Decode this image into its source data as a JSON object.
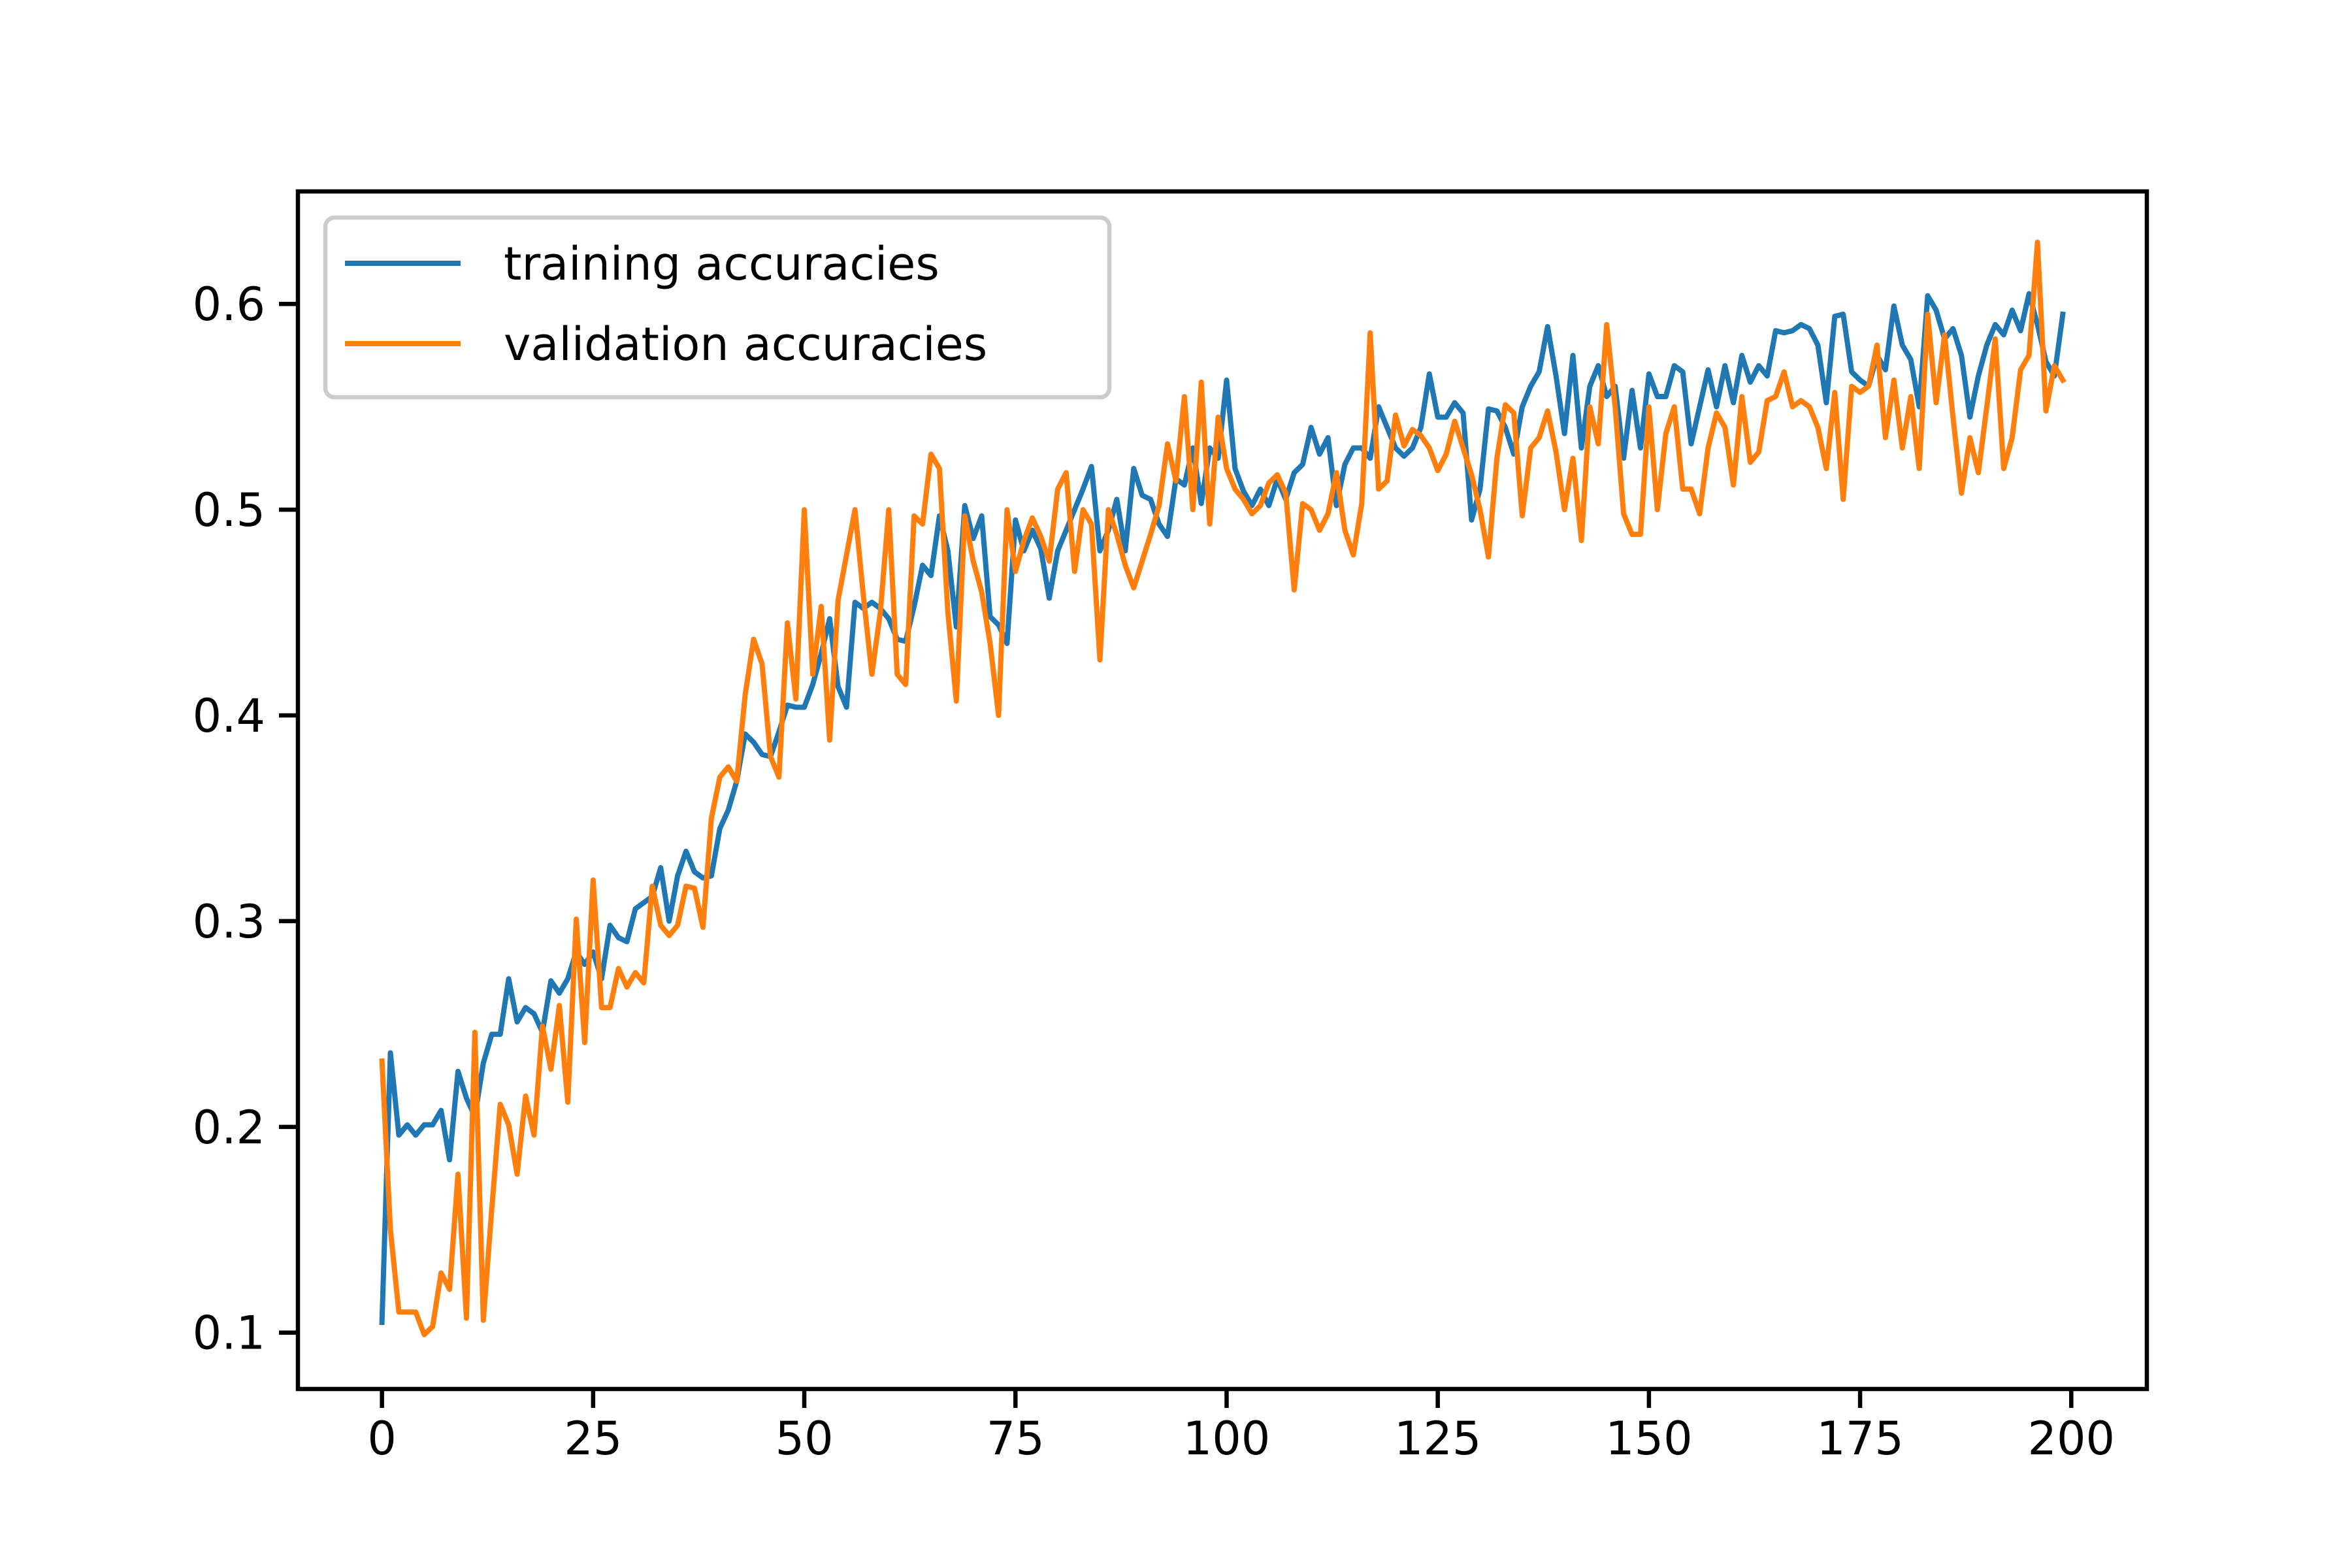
{
  "chart_data": {
    "type": "line",
    "x": [
      0,
      1,
      2,
      3,
      4,
      5,
      6,
      7,
      8,
      9,
      10,
      11,
      12,
      13,
      14,
      15,
      16,
      17,
      18,
      19,
      20,
      21,
      22,
      23,
      24,
      25,
      26,
      27,
      28,
      29,
      30,
      31,
      32,
      33,
      34,
      35,
      36,
      37,
      38,
      39,
      40,
      41,
      42,
      43,
      44,
      45,
      46,
      47,
      48,
      49,
      50,
      51,
      52,
      53,
      54,
      55,
      56,
      57,
      58,
      59,
      60,
      61,
      62,
      63,
      64,
      65,
      66,
      67,
      68,
      69,
      70,
      71,
      72,
      73,
      74,
      75,
      76,
      77,
      78,
      79,
      80,
      81,
      82,
      83,
      84,
      85,
      86,
      87,
      88,
      89,
      90,
      91,
      92,
      93,
      94,
      95,
      96,
      97,
      98,
      99,
      100,
      101,
      102,
      103,
      104,
      105,
      106,
      107,
      108,
      109,
      110,
      111,
      112,
      113,
      114,
      115,
      116,
      117,
      118,
      119,
      120,
      121,
      122,
      123,
      124,
      125,
      126,
      127,
      128,
      129,
      130,
      131,
      132,
      133,
      134,
      135,
      136,
      137,
      138,
      139,
      140,
      141,
      142,
      143,
      144,
      145,
      146,
      147,
      148,
      149,
      150,
      151,
      152,
      153,
      154,
      155,
      156,
      157,
      158,
      159,
      160,
      161,
      162,
      163,
      164,
      165,
      166,
      167,
      168,
      169,
      170,
      171,
      172,
      173,
      174,
      175,
      176,
      177,
      178,
      179,
      180,
      181,
      182,
      183,
      184,
      185,
      186,
      187,
      188,
      189,
      190,
      191,
      192,
      193,
      194,
      195,
      196,
      197,
      198,
      199
    ],
    "series": [
      {
        "name": "training accuracies",
        "color": "#1f77b4",
        "values": [
          0.105,
          0.236,
          0.196,
          0.201,
          0.196,
          0.201,
          0.201,
          0.208,
          0.184,
          0.227,
          0.214,
          0.205,
          0.231,
          0.245,
          0.245,
          0.272,
          0.251,
          0.258,
          0.255,
          0.246,
          0.271,
          0.265,
          0.272,
          0.285,
          0.279,
          0.285,
          0.272,
          0.298,
          0.292,
          0.29,
          0.306,
          0.309,
          0.312,
          0.326,
          0.3,
          0.322,
          0.334,
          0.324,
          0.321,
          0.322,
          0.345,
          0.354,
          0.368,
          0.391,
          0.387,
          0.381,
          0.38,
          0.392,
          0.405,
          0.404,
          0.404,
          0.415,
          0.43,
          0.447,
          0.414,
          0.404,
          0.455,
          0.452,
          0.455,
          0.452,
          0.447,
          0.437,
          0.436,
          0.453,
          0.473,
          0.468,
          0.497,
          0.48,
          0.443,
          0.502,
          0.486,
          0.497,
          0.448,
          0.444,
          0.435,
          0.495,
          0.48,
          0.49,
          0.481,
          0.457,
          0.48,
          0.49,
          0.5,
          0.51,
          0.521,
          0.48,
          0.49,
          0.505,
          0.48,
          0.52,
          0.507,
          0.505,
          0.493,
          0.487,
          0.515,
          0.512,
          0.53,
          0.503,
          0.53,
          0.525,
          0.563,
          0.52,
          0.509,
          0.502,
          0.51,
          0.502,
          0.515,
          0.505,
          0.518,
          0.522,
          0.54,
          0.527,
          0.535,
          0.502,
          0.522,
          0.53,
          0.53,
          0.525,
          0.55,
          0.54,
          0.53,
          0.526,
          0.53,
          0.54,
          0.566,
          0.545,
          0.545,
          0.552,
          0.547,
          0.495,
          0.51,
          0.549,
          0.548,
          0.54,
          0.527,
          0.55,
          0.56,
          0.567,
          0.589,
          0.565,
          0.537,
          0.575,
          0.53,
          0.56,
          0.57,
          0.555,
          0.56,
          0.525,
          0.558,
          0.53,
          0.566,
          0.555,
          0.555,
          0.57,
          0.567,
          0.532,
          0.55,
          0.568,
          0.55,
          0.57,
          0.552,
          0.575,
          0.562,
          0.57,
          0.565,
          0.587,
          0.586,
          0.587,
          0.59,
          0.588,
          0.58,
          0.552,
          0.594,
          0.595,
          0.567,
          0.563,
          0.56,
          0.575,
          0.568,
          0.599,
          0.58,
          0.573,
          0.55,
          0.604,
          0.597,
          0.583,
          0.588,
          0.575,
          0.545,
          0.565,
          0.58,
          0.59,
          0.585,
          0.597,
          0.587,
          0.605,
          0.59,
          0.572,
          0.565,
          0.595
        ]
      },
      {
        "name": "validation accuracies",
        "color": "#ff7f0e",
        "values": [
          0.232,
          0.15,
          0.11,
          0.11,
          0.11,
          0.099,
          0.103,
          0.129,
          0.121,
          0.177,
          0.107,
          0.246,
          0.106,
          0.16,
          0.211,
          0.201,
          0.177,
          0.215,
          0.196,
          0.249,
          0.228,
          0.259,
          0.212,
          0.301,
          0.241,
          0.32,
          0.258,
          0.258,
          0.277,
          0.268,
          0.275,
          0.27,
          0.317,
          0.298,
          0.293,
          0.298,
          0.317,
          0.316,
          0.297,
          0.35,
          0.37,
          0.375,
          0.368,
          0.41,
          0.437,
          0.425,
          0.38,
          0.37,
          0.445,
          0.408,
          0.5,
          0.42,
          0.453,
          0.388,
          0.456,
          0.478,
          0.5,
          0.458,
          0.42,
          0.45,
          0.5,
          0.42,
          0.415,
          0.497,
          0.493,
          0.527,
          0.52,
          0.45,
          0.407,
          0.497,
          0.475,
          0.46,
          0.435,
          0.4,
          0.5,
          0.47,
          0.485,
          0.496,
          0.487,
          0.475,
          0.51,
          0.518,
          0.47,
          0.5,
          0.493,
          0.427,
          0.5,
          0.488,
          0.473,
          0.462,
          0.475,
          0.488,
          0.502,
          0.532,
          0.514,
          0.555,
          0.5,
          0.562,
          0.493,
          0.545,
          0.52,
          0.51,
          0.505,
          0.498,
          0.502,
          0.513,
          0.517,
          0.508,
          0.461,
          0.503,
          0.5,
          0.49,
          0.498,
          0.518,
          0.49,
          0.478,
          0.503,
          0.586,
          0.51,
          0.514,
          0.546,
          0.531,
          0.539,
          0.536,
          0.53,
          0.519,
          0.527,
          0.543,
          0.53,
          0.517,
          0.5,
          0.477,
          0.525,
          0.551,
          0.547,
          0.497,
          0.53,
          0.535,
          0.548,
          0.528,
          0.5,
          0.525,
          0.485,
          0.55,
          0.532,
          0.59,
          0.55,
          0.498,
          0.488,
          0.488,
          0.55,
          0.5,
          0.537,
          0.55,
          0.51,
          0.51,
          0.498,
          0.53,
          0.547,
          0.54,
          0.512,
          0.555,
          0.523,
          0.528,
          0.553,
          0.555,
          0.567,
          0.55,
          0.553,
          0.55,
          0.54,
          0.52,
          0.557,
          0.505,
          0.56,
          0.557,
          0.56,
          0.58,
          0.535,
          0.563,
          0.53,
          0.555,
          0.52,
          0.595,
          0.552,
          0.585,
          0.545,
          0.508,
          0.535,
          0.518,
          0.55,
          0.583,
          0.52,
          0.535,
          0.568,
          0.575,
          0.63,
          0.548,
          0.57,
          0.563
        ]
      }
    ],
    "xlim": [
      -9.95,
      208.95
    ],
    "ylim": [
      0.0726,
      0.6547
    ],
    "xticks": [
      0,
      25,
      50,
      75,
      100,
      125,
      150,
      175,
      200
    ],
    "yticks": [
      0.1,
      0.2,
      0.3,
      0.4,
      0.5,
      0.6
    ],
    "grid": false,
    "legend": "upper left"
  }
}
